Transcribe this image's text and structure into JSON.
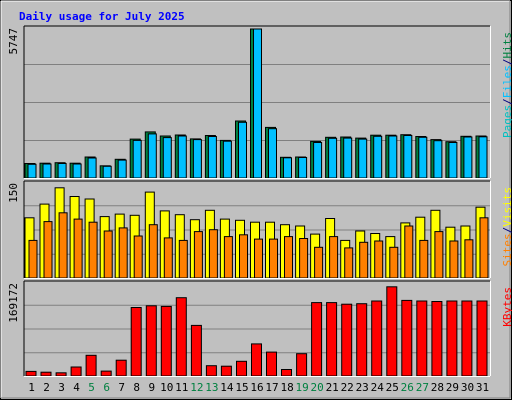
{
  "chart_data": {
    "type": "bar",
    "title": "Daily usage for July 2025",
    "categories": [
      "1",
      "2",
      "3",
      "4",
      "5",
      "6",
      "7",
      "8",
      "9",
      "10",
      "11",
      "12",
      "13",
      "14",
      "15",
      "16",
      "17",
      "18",
      "19",
      "20",
      "21",
      "22",
      "23",
      "24",
      "25",
      "26",
      "27",
      "28",
      "29",
      "30",
      "31"
    ],
    "weekend_days": [
      5,
      6,
      12,
      13,
      19,
      20,
      26,
      27
    ],
    "colors": {
      "title": "#0000ff",
      "pages": "#00c0c0",
      "files": "#00c0ff",
      "hits": "#008040",
      "sites": "#ff8000",
      "visits": "#ffff00",
      "kbytes": "#ff0000",
      "weekend": "#008040",
      "weekday": "#000000",
      "plot_bg": "#c0c0c0",
      "grid": "#808080"
    },
    "panels": [
      {
        "id": "hits-files-pages",
        "ylim": [
          0,
          5747
        ],
        "tick_label": "5747",
        "legend": [
          "Pages",
          "/",
          "Files",
          "/",
          "Hits"
        ],
        "series": [
          {
            "name": "Hits",
            "values": [
              560,
              570,
              590,
              570,
              810,
              470,
              720,
              1500,
              1780,
              1620,
              1660,
              1510,
              1640,
              1450,
              2200,
              5747,
              1950,
              800,
              810,
              1410,
              1570,
              1580,
              1540,
              1650,
              1650,
              1670,
              1600,
              1480,
              1400,
              1610,
              1620
            ]
          },
          {
            "name": "Files",
            "values": [
              530,
              540,
              560,
              540,
              770,
              450,
              690,
              1450,
              1700,
              1560,
              1620,
              1480,
              1600,
              1420,
              2150,
              5747,
              1900,
              780,
              790,
              1370,
              1530,
              1540,
              1500,
              1610,
              1620,
              1640,
              1570,
              1440,
              1370,
              1580,
              1590
            ]
          }
        ]
      },
      {
        "id": "visits-sites",
        "ylim": [
          0,
          150
        ],
        "tick_label": "150",
        "legend": [
          "Sites",
          "/",
          "Visits"
        ],
        "series": [
          {
            "name": "Visits",
            "values": [
              96,
              118,
              144,
              130,
              126,
              98,
              102,
              100,
              137,
              107,
              101,
              93,
              108,
              94,
              92,
              89,
              89,
              85,
              83,
              70,
              95,
              60,
              75,
              71,
              66,
              88,
              97,
              108,
              81,
              83,
              113
            ]
          },
          {
            "name": "Sites",
            "values": [
              60,
              90,
              104,
              94,
              89,
              75,
              80,
              67,
              85,
              64,
              60,
              74,
              77,
              66,
              69,
              62,
              62,
              66,
              63,
              49,
              66,
              48,
              57,
              59,
              49,
              83,
              60,
              74,
              59,
              61,
              96
            ]
          }
        ]
      },
      {
        "id": "kbytes",
        "ylim": [
          0,
          169172
        ],
        "tick_label": "169172",
        "legend": [
          "KBytes"
        ],
        "series": [
          {
            "name": "KBytes",
            "values": [
              8500,
              7000,
              5800,
              16500,
              38000,
              9000,
              29000,
              126000,
              129000,
              128000,
              144000,
              93000,
              19000,
              18000,
              27000,
              59000,
              44000,
              12000,
              41000,
              135000,
              135000,
              132000,
              133000,
              138000,
              164000,
              139000,
              138000,
              137000,
              138000,
              138000,
              138000
            ]
          }
        ]
      }
    ]
  }
}
